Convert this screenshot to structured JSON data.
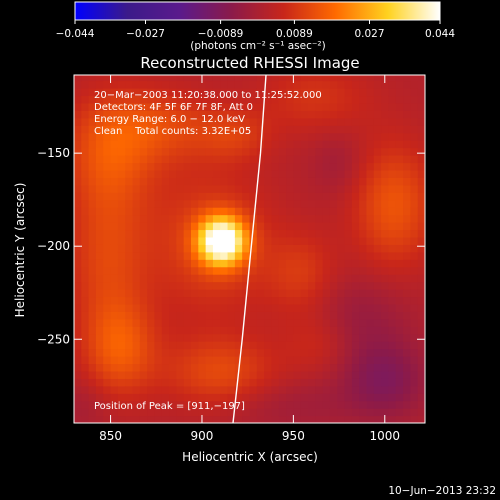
{
  "chart_data": {
    "type": "heatmap",
    "title": "Reconstructed RHESSI Image",
    "xlabel": "Heliocentric X (arcsec)",
    "ylabel": "Heliocentric Y (arcsec)",
    "xlim": [
      830,
      1022
    ],
    "ylim": [
      -295,
      -108
    ],
    "x_ticks": [
      850,
      900,
      950,
      1000
    ],
    "x_tick_labels": [
      "850",
      "900",
      "950",
      "1000"
    ],
    "y_ticks": [
      -150,
      -200,
      -250
    ],
    "y_tick_labels": [
      "−150",
      "−200",
      "−250"
    ],
    "colorbar": {
      "range": [
        -0.044,
        0.044
      ],
      "ticks": [
        -0.044,
        -0.027,
        -0.0089,
        0.0089,
        0.027,
        0.044
      ],
      "tick_labels": [
        "−0.044",
        "−0.027",
        "−0.0089",
        "0.0089",
        "0.027",
        "0.044"
      ],
      "unit_label": "(photons cm⁻² s⁻¹ asec⁻²)",
      "colors": [
        "#0000ff",
        "#3b1a8a",
        "#5a1a8c",
        "#8b1a4a",
        "#c8261a",
        "#ff6a00",
        "#ffd21f",
        "#ffffff"
      ]
    },
    "annotations": [
      "20−Mar−2003 11:20:38.000 to 11:25:52.000",
      "Detectors: 4F 5F 6F 7F 8F, Att 0",
      "Energy Range: 6.0 − 12.0 keV",
      "Clean    Total counts: 3.32E+05"
    ],
    "peak_label": "Position of Peak = [911,−197]",
    "peak": {
      "x": 911,
      "y": -197,
      "value": 0.044
    },
    "blobs": [
      {
        "x": 911,
        "y": -197,
        "sx": 9,
        "sy": 9,
        "a": 0.044
      },
      {
        "x": 905,
        "y": -198,
        "sx": 24,
        "sy": 28,
        "a": 0.01
      },
      {
        "x": 850,
        "y": -148,
        "sx": 18,
        "sy": 22,
        "a": 0.012
      },
      {
        "x": 848,
        "y": -205,
        "sx": 16,
        "sy": 30,
        "a": 0.01
      },
      {
        "x": 855,
        "y": -255,
        "sx": 14,
        "sy": 18,
        "a": 0.013
      },
      {
        "x": 910,
        "y": -268,
        "sx": 22,
        "sy": 14,
        "a": 0.011
      },
      {
        "x": 880,
        "y": -135,
        "sx": 22,
        "sy": 14,
        "a": 0.009
      },
      {
        "x": 918,
        "y": -140,
        "sx": 14,
        "sy": 10,
        "a": 0.007
      },
      {
        "x": 962,
        "y": -120,
        "sx": 22,
        "sy": 14,
        "a": 0.007
      },
      {
        "x": 1005,
        "y": -178,
        "sx": 16,
        "sy": 24,
        "a": 0.013
      },
      {
        "x": 955,
        "y": -215,
        "sx": 14,
        "sy": 16,
        "a": 0.008
      },
      {
        "x": 965,
        "y": -252,
        "sx": 14,
        "sy": 12,
        "a": 0.006
      },
      {
        "x": 975,
        "y": -155,
        "sx": 10,
        "sy": 12,
        "a": -0.004
      },
      {
        "x": 985,
        "y": -240,
        "sx": 20,
        "sy": 18,
        "a": -0.006
      },
      {
        "x": 1000,
        "y": -272,
        "sx": 16,
        "sy": 14,
        "a": -0.01
      },
      {
        "x": 945,
        "y": -285,
        "sx": 28,
        "sy": 10,
        "a": -0.004
      },
      {
        "x": 835,
        "y": -285,
        "sx": 10,
        "sy": 10,
        "a": -0.003
      }
    ],
    "baseline": 0.0017,
    "limb": [
      [
        935,
        -108
      ],
      [
        932,
        -150
      ],
      [
        927,
        -200
      ],
      [
        922,
        -250
      ],
      [
        917,
        -295
      ]
    ]
  },
  "footer": {
    "date": "10−Jun−2013 23:32"
  }
}
